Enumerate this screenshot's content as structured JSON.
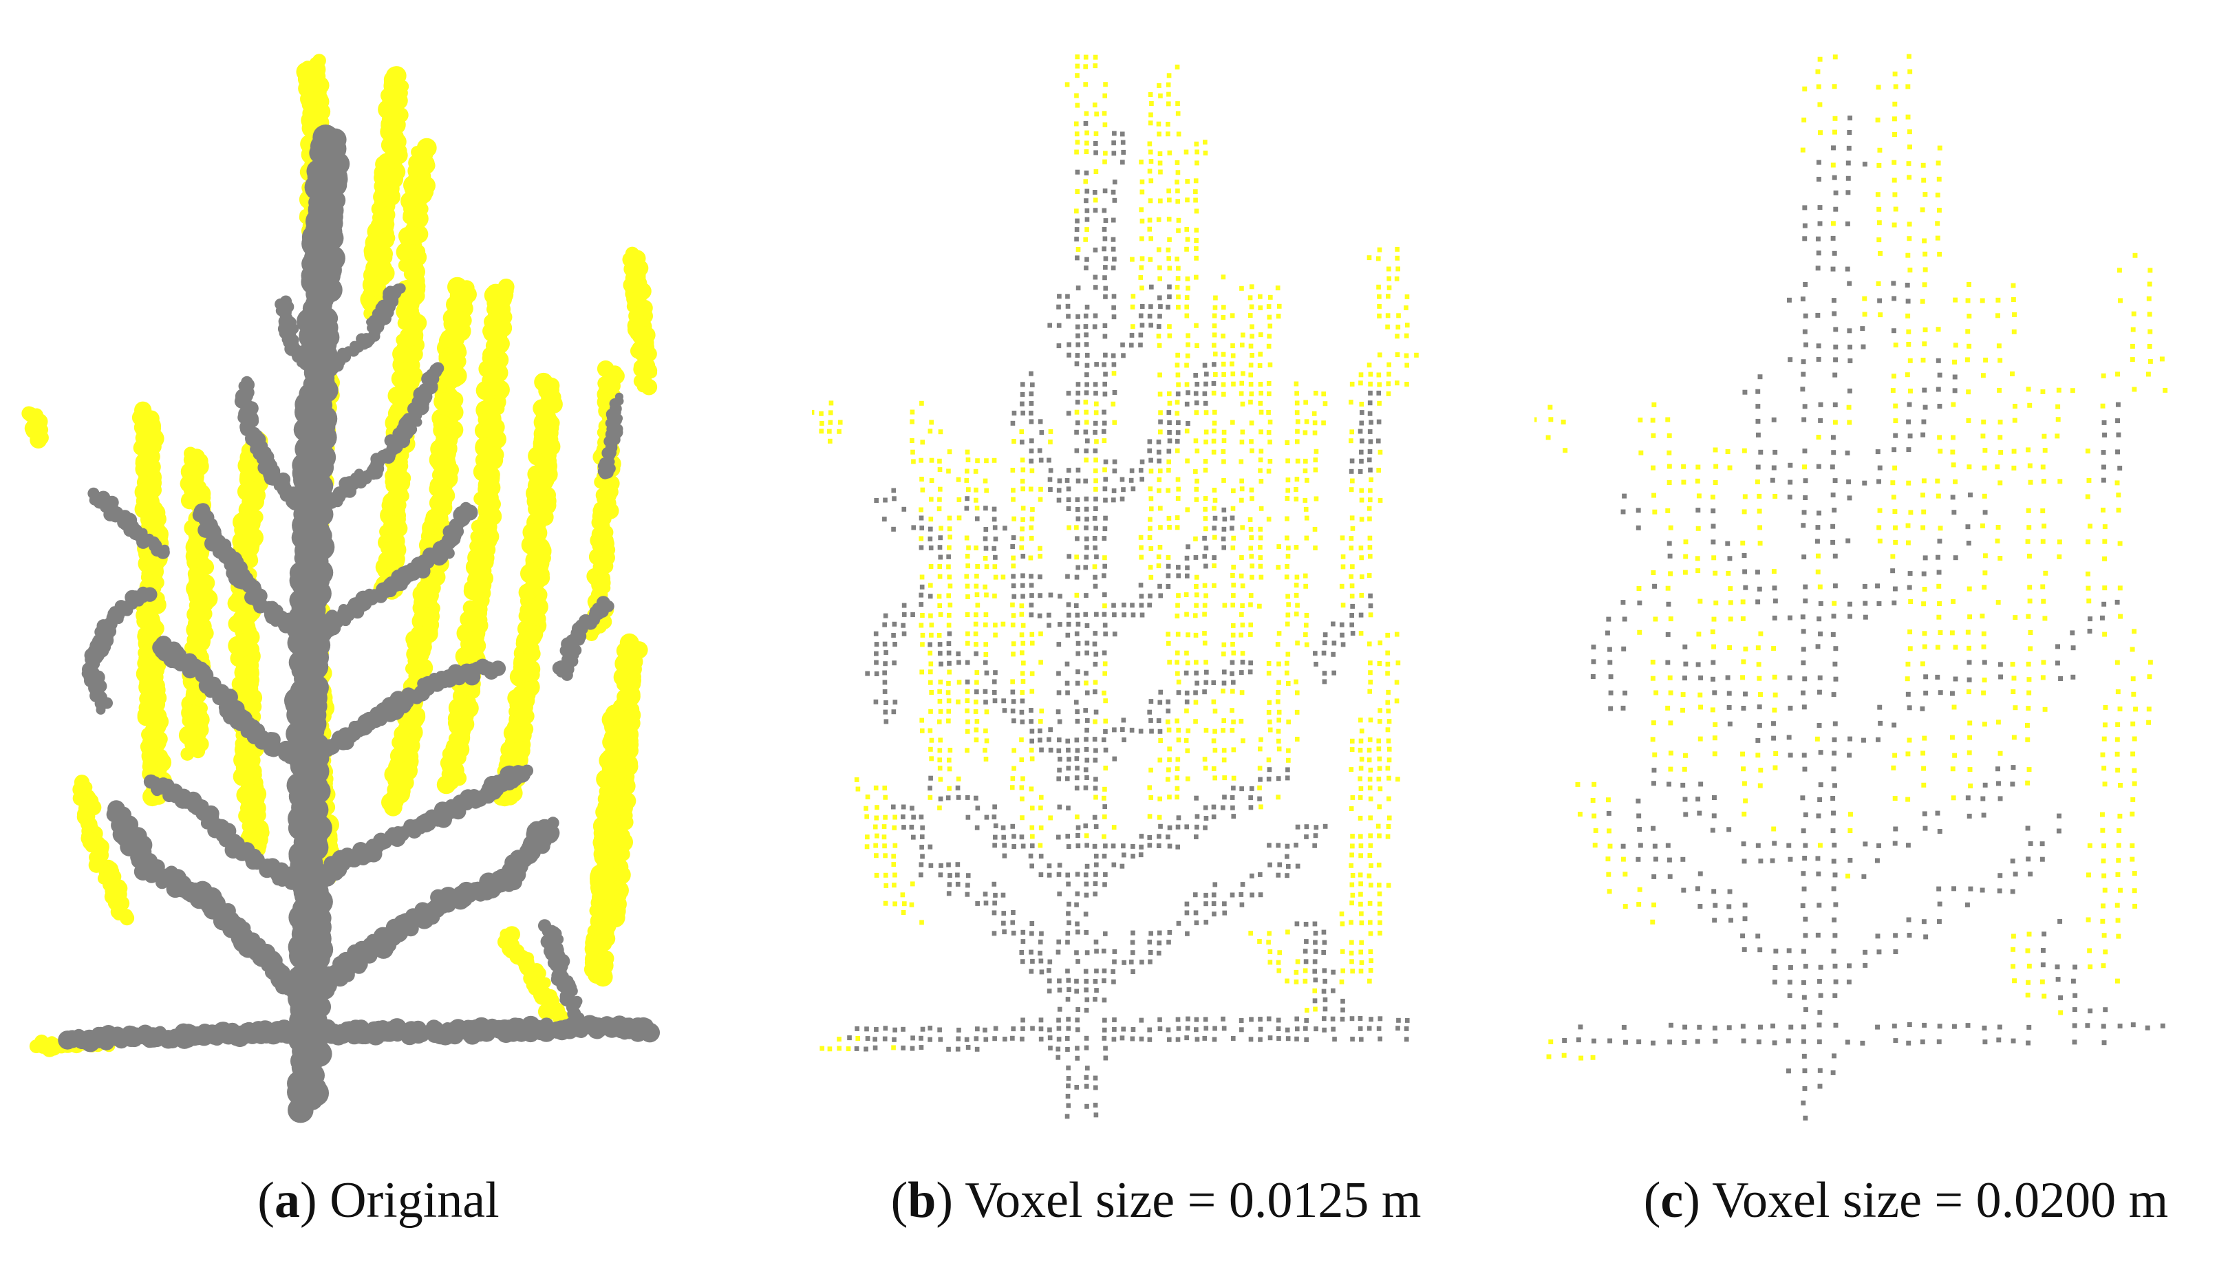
{
  "colors": {
    "background": "#ffffff",
    "wood": "#808080",
    "leaf": "#ffff1a",
    "caption_text": "#111111"
  },
  "panels": [
    {
      "id": "a",
      "letter": "a",
      "caption": "Original",
      "rendering": "dense-point-cloud"
    },
    {
      "id": "b",
      "letter": "b",
      "caption": "Voxel size = 0.0125 m",
      "voxel_size_m": 0.0125,
      "rendering": "voxel-downsampled"
    },
    {
      "id": "c",
      "letter": "c",
      "caption": "Voxel size = 0.0200 m",
      "voxel_size_m": 0.02,
      "rendering": "voxel-downsampled"
    }
  ]
}
